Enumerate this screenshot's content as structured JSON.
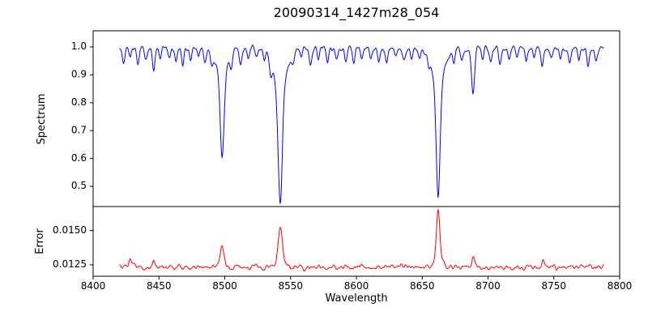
{
  "figure": {
    "background": "#ffffff",
    "text_color": "#000000"
  },
  "chart_data": {
    "type": "line",
    "title": "20090314_1427m28_054",
    "xlabel": "Wavelength",
    "legend": "none",
    "grid": false,
    "x_range": [
      8400,
      8800
    ],
    "x_ticks": [
      8400,
      8450,
      8500,
      8550,
      8600,
      8650,
      8700,
      8750,
      8800
    ],
    "x_tick_labels": [
      "8400",
      "8450",
      "8500",
      "8550",
      "8600",
      "8650",
      "8700",
      "8750",
      "8800"
    ],
    "data_x": {
      "start": 8420,
      "end": 8788,
      "step": 0.5
    },
    "panels": [
      {
        "name": "spectrum",
        "ylabel": "Spectrum",
        "ylim": [
          0.4275,
          1.058
        ],
        "y_ticks": [
          0.5,
          0.6,
          0.7,
          0.8,
          0.9,
          1.0
        ],
        "y_tick_labels": [
          "0.5",
          "0.6",
          "0.7",
          "0.8",
          "0.9",
          "1.0"
        ],
        "line_color": "#0000ff",
        "continuum": 0.995,
        "noise_amplitude": 0.007,
        "major_absorption_lines": [
          {
            "center": 8498.0,
            "depth": 0.4,
            "sigma": 1.3,
            "min_value": 0.6
          },
          {
            "center": 8542.1,
            "depth": 0.56,
            "sigma": 1.5,
            "min_value": 0.44
          },
          {
            "center": 8662.1,
            "depth": 0.53,
            "sigma": 1.4,
            "min_value": 0.47
          }
        ],
        "minor_absorption_lines": [
          [
            8423,
            0.05
          ],
          [
            8428,
            0.035
          ],
          [
            8434,
            0.06
          ],
          [
            8440,
            0.04
          ],
          [
            8446,
            0.08
          ],
          [
            8451,
            0.04
          ],
          [
            8458,
            0.03
          ],
          [
            8463,
            0.055
          ],
          [
            8468,
            0.065
          ],
          [
            8474,
            0.04
          ],
          [
            8480,
            0.03
          ],
          [
            8485,
            0.045
          ],
          [
            8490,
            0.05
          ],
          [
            8505,
            0.04
          ],
          [
            8512,
            0.055
          ],
          [
            8518,
            0.04
          ],
          [
            8524,
            0.03
          ],
          [
            8530,
            0.035
          ],
          [
            8535,
            0.05
          ],
          [
            8552,
            0.04
          ],
          [
            8558,
            0.035
          ],
          [
            8565,
            0.05
          ],
          [
            8571,
            0.04
          ],
          [
            8578,
            0.055
          ],
          [
            8585,
            0.035
          ],
          [
            8592,
            0.04
          ],
          [
            8598,
            0.065
          ],
          [
            8604,
            0.04
          ],
          [
            8611,
            0.035
          ],
          [
            8617,
            0.05
          ],
          [
            8623,
            0.045
          ],
          [
            8630,
            0.035
          ],
          [
            8636,
            0.04
          ],
          [
            8642,
            0.05
          ],
          [
            8648,
            0.035
          ],
          [
            8655,
            0.03
          ],
          [
            8674,
            0.05
          ],
          [
            8680,
            0.04
          ],
          [
            8688.6,
            0.17,
            1.1
          ],
          [
            8696,
            0.045
          ],
          [
            8702,
            0.035
          ],
          [
            8709,
            0.05
          ],
          [
            8716,
            0.04
          ],
          [
            8722,
            0.035
          ],
          [
            8729,
            0.045
          ],
          [
            8735,
            0.03
          ],
          [
            8741,
            0.06
          ],
          [
            8748,
            0.04
          ],
          [
            8755,
            0.035
          ],
          [
            8762,
            0.055
          ],
          [
            8769,
            0.04
          ],
          [
            8776,
            0.065
          ],
          [
            8782,
            0.045
          ]
        ]
      },
      {
        "name": "error",
        "ylabel": "Error",
        "ylim": [
          0.01167,
          0.01675
        ],
        "y_ticks": [
          0.0125,
          0.015
        ],
        "y_tick_labels": [
          "0.0125",
          "0.0150"
        ],
        "line_color": "#ff0000",
        "baseline": 0.01232,
        "noise_amplitude": 0.00012,
        "peaks": [
          {
            "center": 8498.0,
            "height": 0.0017,
            "sigma": 1.1,
            "max_value": 0.014
          },
          {
            "center": 8542.1,
            "height": 0.0031,
            "sigma": 1.3,
            "max_value": 0.0155
          },
          {
            "center": 8662.1,
            "height": 0.0042,
            "sigma": 1.2,
            "max_value": 0.0165
          },
          {
            "center": 8428.0,
            "height": 0.0006,
            "sigma": 0.8
          },
          {
            "center": 8446.0,
            "height": 0.0005,
            "sigma": 0.8
          },
          {
            "center": 8689.0,
            "height": 0.0008,
            "sigma": 0.9
          },
          {
            "center": 8742.0,
            "height": 0.0005,
            "sigma": 0.8
          }
        ]
      }
    ],
    "axis_color": "#000000"
  }
}
